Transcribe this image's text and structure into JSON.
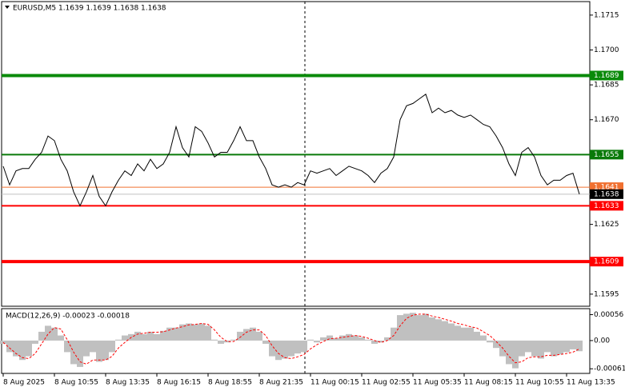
{
  "chart_data": [
    {
      "type": "line",
      "title": "EURUSD,M5  1.1639 1.1639 1.1638 1.1638",
      "color": "#000000",
      "values": [
        1.165,
        1.1642,
        1.1648,
        1.1649,
        1.1649,
        1.1653,
        1.1656,
        1.1663,
        1.1661,
        1.1653,
        1.1648,
        1.1639,
        1.1633,
        1.1639,
        1.1646,
        1.1637,
        1.1633,
        1.1639,
        1.1644,
        1.1648,
        1.1646,
        1.1651,
        1.1648,
        1.1653,
        1.1649,
        1.1651,
        1.1656,
        1.1667,
        1.1658,
        1.1654,
        1.1667,
        1.1665,
        1.166,
        1.1654,
        1.1656,
        1.1656,
        1.1661,
        1.1667,
        1.1661,
        1.1661,
        1.1654,
        1.1649,
        1.1642,
        1.1641,
        1.1642,
        1.1641,
        1.1643,
        1.1642,
        1.1648,
        1.1647,
        1.1648,
        1.1649,
        1.1646,
        1.1648,
        1.165,
        1.1649,
        1.1648,
        1.1646,
        1.1643,
        1.1647,
        1.1649,
        1.1654,
        1.167,
        1.1676,
        1.1677,
        1.1679,
        1.1681,
        1.1673,
        1.1675,
        1.1673,
        1.1674,
        1.1672,
        1.1671,
        1.1672,
        1.167,
        1.1668,
        1.1667,
        1.1663,
        1.1658,
        1.1651,
        1.1646,
        1.1656,
        1.1658,
        1.1654,
        1.1646,
        1.1642,
        1.1644,
        1.1644,
        1.1646,
        1.1647,
        1.1638
      ],
      "xlim": [
        0,
        92
      ],
      "ylim": [
        1.15898,
        1.17208
      ],
      "yticks": [
        1.1595,
        1.1625,
        {
          "value": 1.167,
          "label": "1.1670"
        },
        1.1685,
        {
          "value": 1.17,
          "label": "1.1700"
        },
        1.1715
      ],
      "levels": {
        "values": [
          1.1689,
          1.1655,
          1.1641,
          1.1633,
          1.1609
        ],
        "colors": [
          "#0a8a0a",
          "#0a7a0a",
          "#f07030",
          "#ff0000",
          "#ff0000"
        ],
        "line_widths": [
          4,
          2,
          1,
          2,
          4
        ]
      },
      "last": 1.1638
    },
    {
      "type": "macd",
      "title": "MACD(12,26,9) -0.00023 -0.00018",
      "histogram": {
        "color": "#c0c0c0",
        "values": [
          -7e-05,
          -0.00025,
          -0.00034,
          -0.00042,
          -0.00034,
          -7e-05,
          0.00019,
          0.00032,
          0.00028,
          0.00011,
          -0.00025,
          -0.00051,
          -0.00057,
          -0.00034,
          -0.00025,
          -0.00046,
          -0.00042,
          -0.00025,
          2e-05,
          0.00011,
          0.00014,
          0.00019,
          0.00014,
          0.00019,
          0.00014,
          0.00021,
          0.00028,
          0.00028,
          0.00035,
          0.00037,
          0.00035,
          0.00037,
          0.00032,
          2e-05,
          -7e-05,
          -4e-05,
          2e-05,
          0.00019,
          0.00025,
          0.00028,
          0.00019,
          -7e-05,
          -0.00034,
          -0.00042,
          -0.00039,
          -0.00034,
          -0.00028,
          -0.00025,
          2e-05,
          -4e-05,
          7e-05,
          0.00011,
          5e-05,
          0.00011,
          0.00014,
          0.00011,
          7e-05,
          2e-05,
          -7e-05,
          -4e-05,
          7e-05,
          0.00028,
          0.00055,
          0.00058,
          0.0006,
          0.00055,
          0.00058,
          0.0005,
          0.00046,
          0.00042,
          0.00037,
          0.00032,
          0.00028,
          0.00028,
          0.00019,
          0.00011,
          -4e-05,
          -0.00016,
          -0.00034,
          -0.00051,
          -0.0006,
          -0.00034,
          -0.00025,
          -0.00034,
          -0.00039,
          -0.00025,
          -0.00034,
          -0.0003,
          -0.00025,
          -0.00019,
          -0.00023
        ]
      },
      "signal": {
        "color": "#ff0000",
        "values": [
          -4e-05,
          -0.00016,
          -0.00028,
          -0.00037,
          -0.00039,
          -0.00028,
          -7e-05,
          0.00014,
          0.00028,
          0.00025,
          2e-05,
          -0.00025,
          -0.00046,
          -0.00051,
          -0.00042,
          -0.00042,
          -0.00042,
          -0.00034,
          -0.00016,
          -4e-05,
          7e-05,
          0.00014,
          0.00016,
          0.00018,
          0.00018,
          0.00019,
          0.00023,
          0.00027,
          0.0003,
          0.00034,
          0.00035,
          0.00037,
          0.00035,
          0.00023,
          7e-05,
          -2e-05,
          -2e-05,
          7e-05,
          0.00018,
          0.00023,
          0.00023,
          0.00011,
          -0.00011,
          -0.00028,
          -0.00037,
          -0.00039,
          -0.00035,
          -0.0003,
          -0.00018,
          -9e-05,
          -2e-05,
          4e-05,
          5e-05,
          7e-05,
          9e-05,
          0.00011,
          9e-05,
          5e-05,
          0,
          -4e-05,
          0,
          0.00011,
          0.00032,
          0.00048,
          0.00055,
          0.00057,
          0.00057,
          0.00053,
          0.0005,
          0.00046,
          0.00042,
          0.00037,
          0.00034,
          0.0003,
          0.00027,
          0.00019,
          0.00011,
          -2e-05,
          -0.00016,
          -0.00034,
          -0.00048,
          -0.00046,
          -0.00037,
          -0.00035,
          -0.00035,
          -0.00032,
          -0.00032,
          -0.0003,
          -0.00028,
          -0.00025,
          -0.00018
        ]
      },
      "xlim": [
        0,
        92
      ],
      "ylim": [
        -0.00071,
        0.00069
      ],
      "yticks": [
        0.00056,
        {
          "value": 0,
          "label": "0.00"
        },
        -0.00061
      ],
      "xticks": [
        {
          "value": 0,
          "label": "8 Aug 2025"
        },
        {
          "value": 8,
          "label": "8 Aug 10:55"
        },
        {
          "value": 16,
          "label": "8 Aug 13:35"
        },
        {
          "value": 24,
          "label": "8 Aug 16:15"
        },
        {
          "value": 32,
          "label": "8 Aug 18:55"
        },
        {
          "value": 40,
          "label": "8 Aug 21:35"
        },
        {
          "value": 48,
          "label": "11 Aug 00:15"
        },
        {
          "value": 56,
          "label": "11 Aug 02:55"
        },
        {
          "value": 64,
          "label": "11 Aug 05:35"
        },
        {
          "value": 72,
          "label": "11 Aug 08:15"
        },
        {
          "value": 80,
          "label": "11 Aug 10:55"
        },
        {
          "value": 88,
          "label": "11 Aug 13:35"
        }
      ]
    }
  ]
}
